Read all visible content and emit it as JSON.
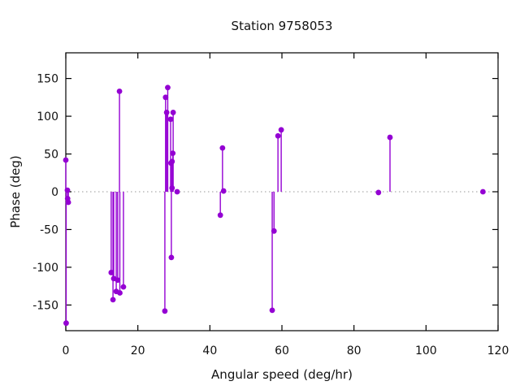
{
  "chart_data": {
    "type": "scatter",
    "style": "impulses-with-points",
    "title": "Station 9758053",
    "xlabel": "Angular speed (deg/hr)",
    "ylabel": "Phase (deg)",
    "xlim": [
      0,
      120
    ],
    "ylim": [
      -184,
      184
    ],
    "xticks": [
      0,
      20,
      40,
      60,
      80,
      100,
      120
    ],
    "yticks": [
      -150,
      -100,
      -50,
      0,
      50,
      100,
      150
    ],
    "grid": false,
    "legend": false,
    "zero_line": true,
    "point_color": "#9400d3",
    "zero_line_color": "#989898",
    "border_color": "#000000",
    "points": [
      [
        0.0,
        42
      ],
      [
        0.45,
        2
      ],
      [
        0.5,
        -9
      ],
      [
        0.7,
        -14
      ],
      [
        0.1,
        -174
      ],
      [
        12.6,
        -107
      ],
      [
        13.1,
        -143
      ],
      [
        13.3,
        -115
      ],
      [
        14.0,
        -132
      ],
      [
        14.4,
        -117
      ],
      [
        14.9,
        133
      ],
      [
        15.0,
        -134
      ],
      [
        16.0,
        -126
      ],
      [
        27.5,
        -158
      ],
      [
        27.7,
        125
      ],
      [
        28.0,
        105
      ],
      [
        28.3,
        138
      ],
      [
        29.1,
        96
      ],
      [
        29.2,
        38
      ],
      [
        29.3,
        -87
      ],
      [
        29.5,
        5
      ],
      [
        29.5,
        40
      ],
      [
        29.7,
        51
      ],
      [
        29.8,
        105
      ],
      [
        30.9,
        0
      ],
      [
        42.9,
        -31
      ],
      [
        43.5,
        58
      ],
      [
        43.8,
        1
      ],
      [
        57.3,
        -157
      ],
      [
        57.8,
        -52
      ],
      [
        58.9,
        74
      ],
      [
        59.8,
        82
      ],
      [
        86.8,
        -1
      ],
      [
        90.0,
        72
      ],
      [
        115.8,
        0
      ]
    ]
  }
}
